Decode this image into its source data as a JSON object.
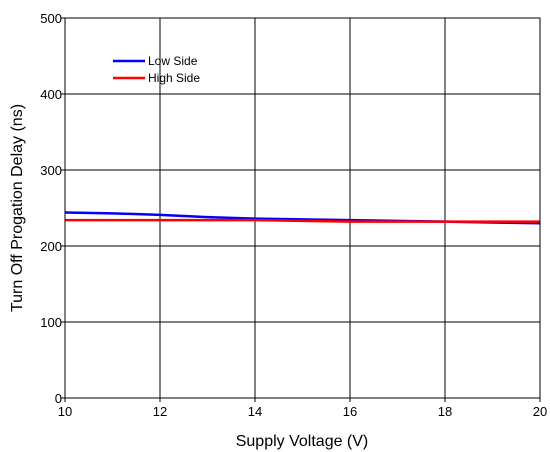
{
  "chart_data": {
    "type": "line",
    "title": "",
    "xlabel": "Supply Voltage (V)",
    "ylabel": "Turn Off Progation Delay (ns)",
    "xlim": [
      10,
      20
    ],
    "ylim": [
      0,
      500
    ],
    "xticks": [
      10,
      12,
      14,
      16,
      18,
      20
    ],
    "yticks": [
      0,
      100,
      200,
      300,
      400,
      500
    ],
    "grid": true,
    "legend_position": "top-left",
    "series": [
      {
        "name": "Low Side",
        "color": "#0000ff",
        "x": [
          10,
          11,
          12,
          13,
          14,
          15,
          16,
          17,
          18,
          19,
          20
        ],
        "y": [
          244,
          243,
          241,
          238,
          236,
          235,
          234,
          233,
          232,
          231,
          230
        ]
      },
      {
        "name": "High Side",
        "color": "#ff0000",
        "x": [
          10,
          11,
          12,
          13,
          14,
          15,
          16,
          17,
          18,
          19,
          20
        ],
        "y": [
          234,
          234,
          234,
          234,
          234,
          233,
          232,
          232,
          232,
          232,
          232
        ]
      }
    ]
  }
}
